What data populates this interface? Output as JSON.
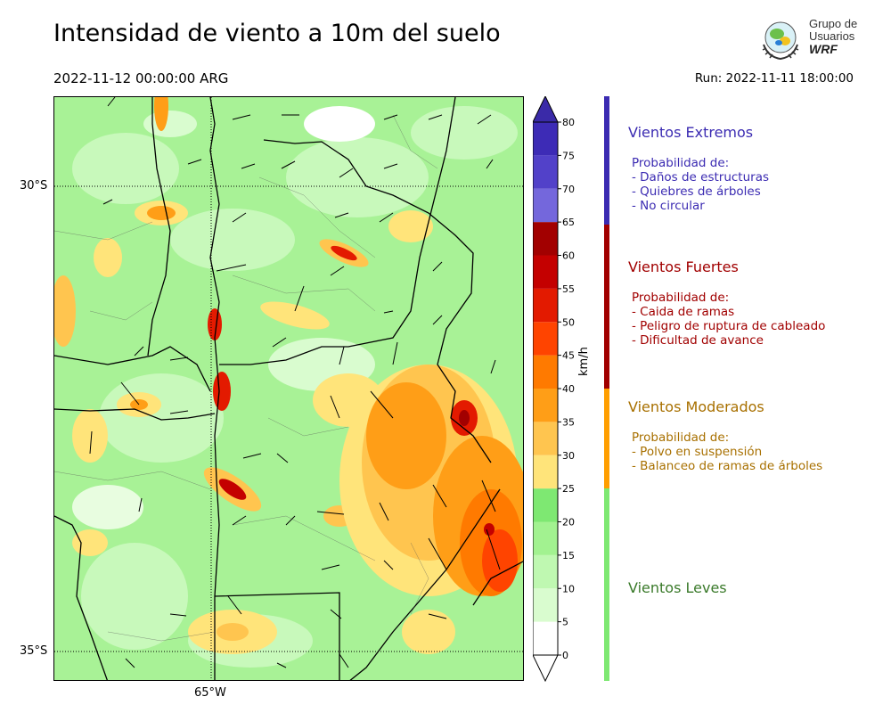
{
  "header": {
    "title": "Intensidad de viento a 10m del suelo",
    "valid_time": "2022-11-12 00:00:00 ARG",
    "run_time": "Run: 2022-11-11 18:00:00"
  },
  "logo": {
    "line1": "Grupo de",
    "line2": "Usuarios",
    "line3": "WRF"
  },
  "map": {
    "lat_labels": [
      "30°S",
      "35°S"
    ],
    "lon_labels": [
      "65°W"
    ],
    "field": "wind speed 10 m"
  },
  "colorbar": {
    "unit": "km/h",
    "ticks": [
      0,
      5,
      10,
      15,
      20,
      25,
      30,
      35,
      40,
      45,
      50,
      55,
      60,
      65,
      70,
      75,
      80
    ],
    "levels": [
      {
        "from": 0,
        "to": 5,
        "color": "#ffffff"
      },
      {
        "from": 5,
        "to": 10,
        "color": "#d9fccf"
      },
      {
        "from": 10,
        "to": 15,
        "color": "#bff8b1"
      },
      {
        "from": 15,
        "to": 20,
        "color": "#a2f290"
      },
      {
        "from": 20,
        "to": 25,
        "color": "#7ee872"
      },
      {
        "from": 25,
        "to": 30,
        "color": "#ffe47a"
      },
      {
        "from": 30,
        "to": 35,
        "color": "#ffc54f"
      },
      {
        "from": 35,
        "to": 40,
        "color": "#ff9e17"
      },
      {
        "from": 40,
        "to": 45,
        "color": "#ff7a00"
      },
      {
        "from": 45,
        "to": 50,
        "color": "#ff4400"
      },
      {
        "from": 50,
        "to": 55,
        "color": "#e31a00"
      },
      {
        "from": 55,
        "to": 60,
        "color": "#c40000"
      },
      {
        "from": 60,
        "to": 65,
        "color": "#a20000"
      },
      {
        "from": 65,
        "to": 70,
        "color": "#7467dc"
      },
      {
        "from": 70,
        "to": 75,
        "color": "#5241c9"
      },
      {
        "from": 75,
        "to": 80,
        "color": "#3d2bb6"
      }
    ],
    "extend_top_color": "#3a2aa8"
  },
  "categories": [
    {
      "title": "Vientos Extremos",
      "desc": "Probabilidad de:\n- Daños de estructuras\n- Quiebres de árboles\n- No circular",
      "color": "#3b2bb2",
      "bar": "#3b2bb2"
    },
    {
      "title": "Vientos Fuertes",
      "desc": "Probabilidad de:\n- Caida de ramas\n- Peligro de ruptura de cableado\n- Dificultad de avance",
      "color": "#a10000",
      "bar": "#a10000"
    },
    {
      "title": "Vientos Moderados",
      "desc": "Probabilidad de:\n- Polvo en suspensión\n- Balanceo de ramas de árboles",
      "color": "#a87000",
      "bar": "#ff9e00"
    },
    {
      "title": "Vientos Leves",
      "desc": "",
      "color": "#3a7a2a",
      "bar": "#7ee872"
    }
  ]
}
